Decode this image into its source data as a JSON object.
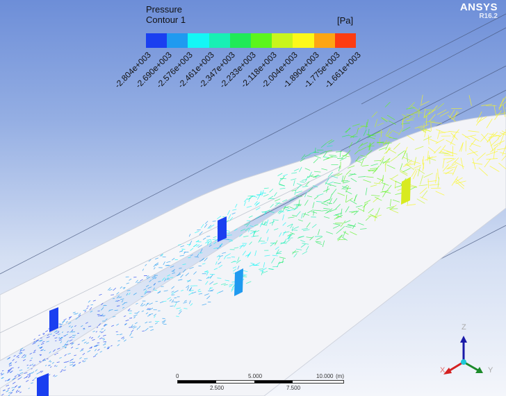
{
  "legend": {
    "title_line1": "Pressure",
    "title_line2": "Contour 1",
    "unit": "[Pa]",
    "colors": [
      "#1a3ff0",
      "#1f9af0",
      "#14f6f6",
      "#18f0b4",
      "#20ea58",
      "#5cf51c",
      "#c8f51c",
      "#fcf81a",
      "#fca514",
      "#fc3c12"
    ],
    "ticks": [
      "-2.804e+003",
      "-2.690e+003",
      "-2.576e+003",
      "-2.461e+003",
      "-2.347e+003",
      "-2.233e+003",
      "-2.118e+003",
      "-2.004e+003",
      "-1.890e+003",
      "-1.775e+003",
      "-1.661e+003"
    ]
  },
  "brand": {
    "name": "ANSYS",
    "version": "R16.2"
  },
  "scale_bar": {
    "labels_top": [
      "0",
      "5.000",
      "10.000"
    ],
    "labels_bottom": [
      "2.500",
      "7.500"
    ],
    "unit": "(m)"
  },
  "triad": {
    "z": "Z",
    "x": "X",
    "y": "Y",
    "colors": {
      "z": "#1a1aa8",
      "x": "#d42020",
      "y": "#1c8a2a",
      "origin": "#20c8d8"
    }
  }
}
